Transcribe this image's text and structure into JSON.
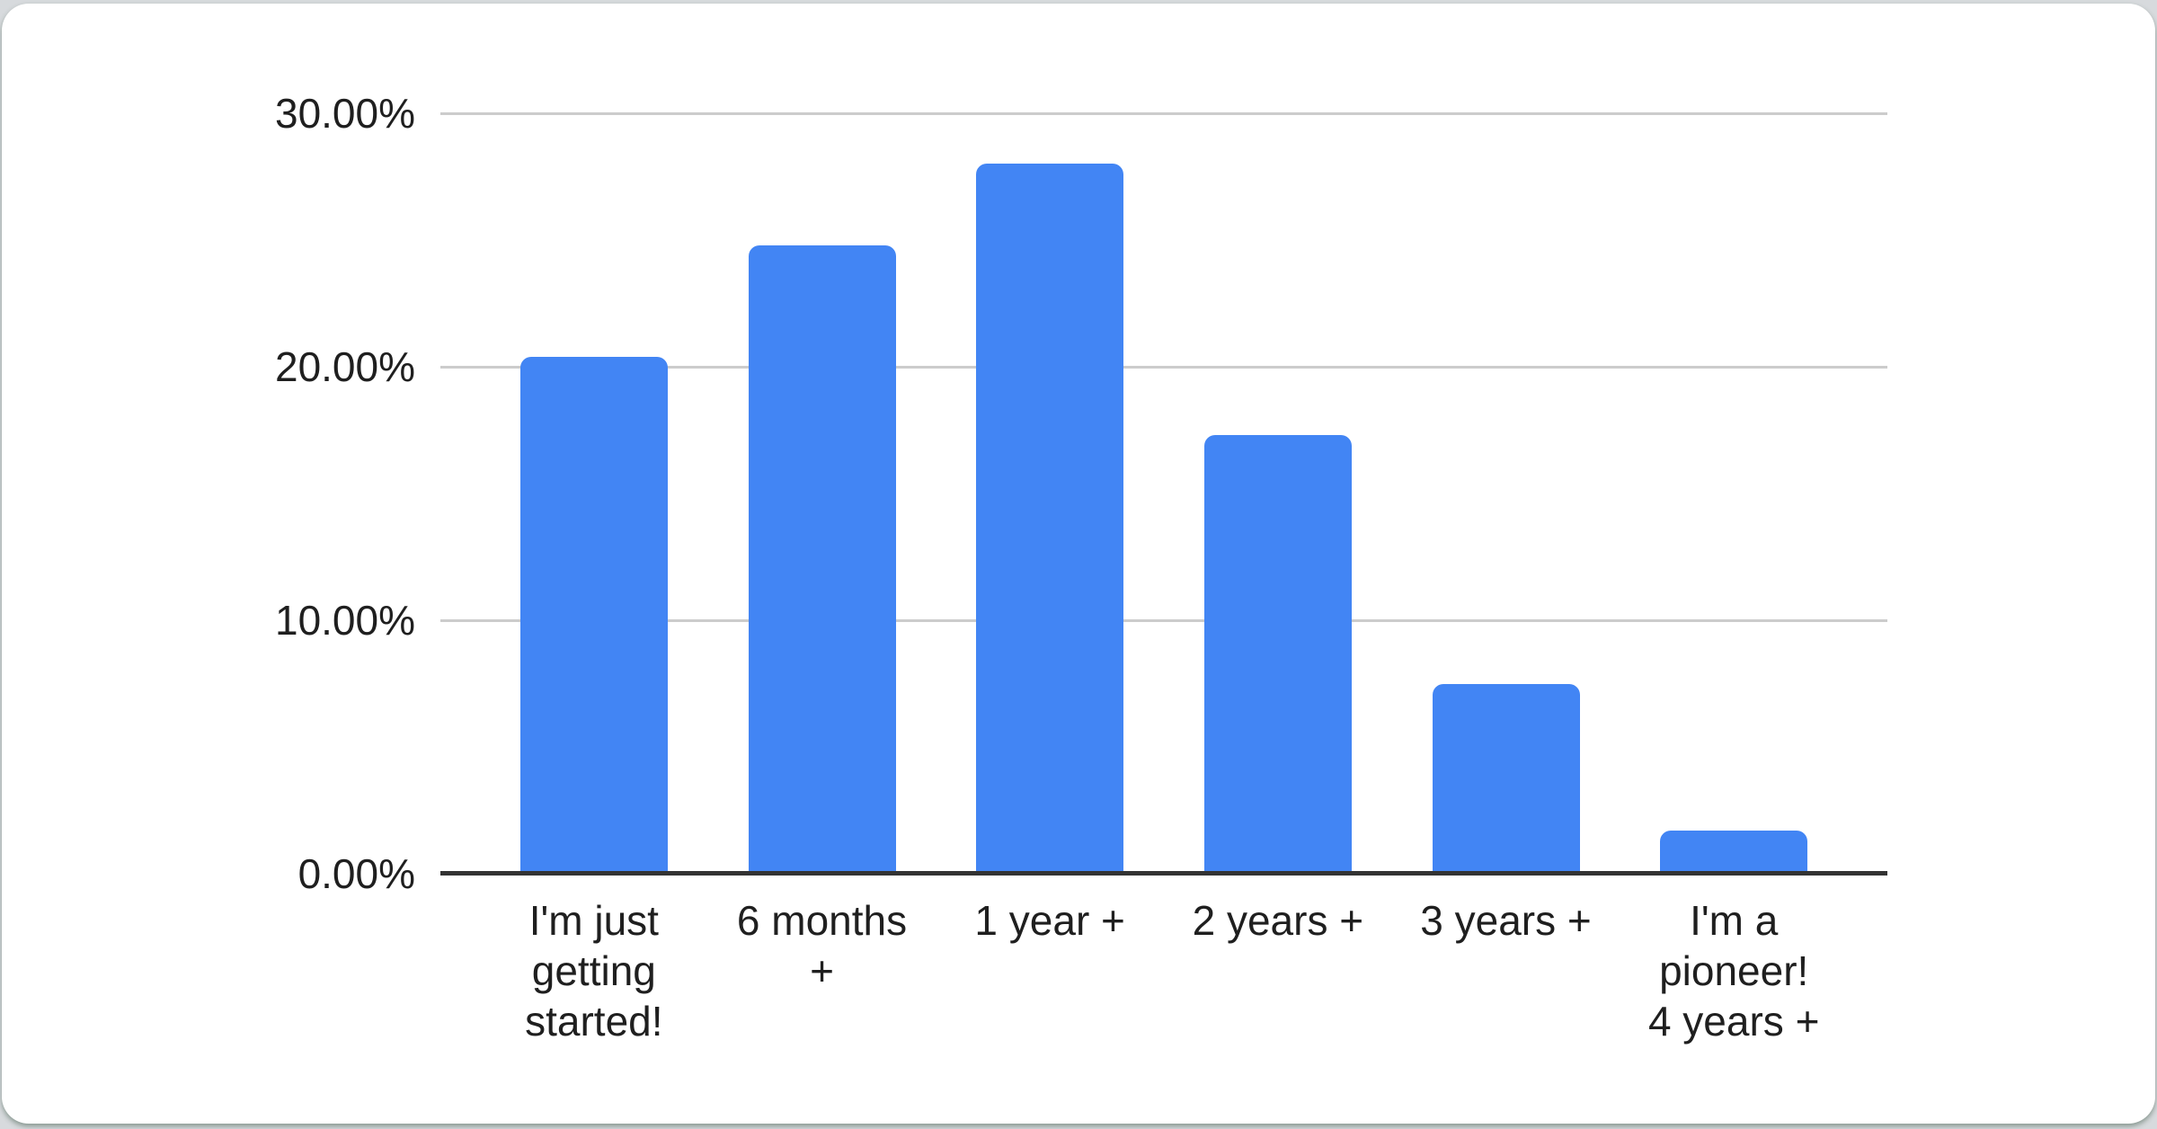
{
  "window": {
    "background_color": "#d7dadd",
    "card_background_color": "#ffffff"
  },
  "chart_data": {
    "type": "bar",
    "title": "",
    "xlabel": "",
    "ylabel": "",
    "categories": [
      "I'm just getting started!",
      "6 months +",
      "1 year +",
      "2 years +",
      "3 years +",
      "I'm a pioneer! 4 years +"
    ],
    "category_lines": [
      [
        "I'm just",
        "getting",
        "started!"
      ],
      [
        "6 months",
        "+"
      ],
      [
        "1 year +"
      ],
      [
        "2 years +"
      ],
      [
        "3 years +"
      ],
      [
        "I'm a",
        "pioneer!",
        "4 years +"
      ]
    ],
    "values": [
      20.4,
      24.8,
      28.0,
      17.3,
      7.5,
      1.7
    ],
    "value_unit": "%",
    "ylim": [
      0,
      30
    ],
    "yticks": [
      {
        "value": 30,
        "label": "30.00%"
      },
      {
        "value": 20,
        "label": "20.00%"
      },
      {
        "value": 10,
        "label": "10.00%"
      },
      {
        "value": 0,
        "label": "0.00%"
      }
    ],
    "grid": true,
    "legend_position": "none",
    "bar_color": "#4285f4",
    "gridline_color": "#cccccc",
    "axis_color": "#333333",
    "text_color": "#1f1f1f"
  }
}
